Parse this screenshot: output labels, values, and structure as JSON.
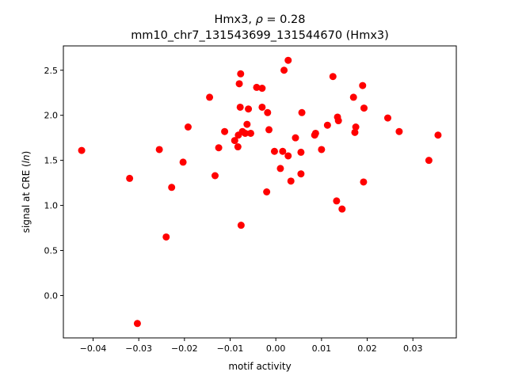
{
  "chart_data": {
    "type": "scatter",
    "title_line1": "Hmx3, ",
    "title_rho_symbol": "ρ",
    "title_rho_value": " = 0.28",
    "title_line2": "mm10_chr7_131543699_131544670 (Hmx3)",
    "xlabel": "motif activity",
    "ylabel_prefix": "signal at CRE (",
    "ylabel_italic": "ln",
    "ylabel_suffix": ")",
    "xlim": [
      -0.0465,
      0.0395
    ],
    "ylim": [
      -0.47,
      2.77
    ],
    "xticks": [
      -0.04,
      -0.03,
      -0.02,
      -0.01,
      0.0,
      0.01,
      0.02,
      0.03
    ],
    "xtick_labels": [
      "−0.04",
      "−0.03",
      "−0.02",
      "−0.01",
      "0.00",
      "0.01",
      "0.02",
      "0.03"
    ],
    "yticks": [
      0.0,
      0.5,
      1.0,
      1.5,
      2.0,
      2.5
    ],
    "ytick_labels": [
      "0.0",
      "0.5",
      "1.0",
      "1.5",
      "2.0",
      "2.5"
    ],
    "grid": false,
    "marker_color": "#ff0000",
    "points": [
      {
        "x": -0.0425,
        "y": 1.61
      },
      {
        "x": -0.032,
        "y": 1.3
      },
      {
        "x": -0.0303,
        "y": -0.31
      },
      {
        "x": -0.0255,
        "y": 1.62
      },
      {
        "x": -0.024,
        "y": 0.65
      },
      {
        "x": -0.0228,
        "y": 1.2
      },
      {
        "x": -0.0203,
        "y": 1.48
      },
      {
        "x": -0.0192,
        "y": 1.87
      },
      {
        "x": -0.0145,
        "y": 2.2
      },
      {
        "x": -0.0133,
        "y": 1.33
      },
      {
        "x": -0.0125,
        "y": 1.64
      },
      {
        "x": -0.0112,
        "y": 1.82
      },
      {
        "x": -0.009,
        "y": 1.72
      },
      {
        "x": -0.0083,
        "y": 1.65
      },
      {
        "x": -0.0082,
        "y": 1.78
      },
      {
        "x": -0.008,
        "y": 2.35
      },
      {
        "x": -0.0078,
        "y": 2.09
      },
      {
        "x": -0.0077,
        "y": 2.46
      },
      {
        "x": -0.0076,
        "y": 0.78
      },
      {
        "x": -0.0073,
        "y": 1.82
      },
      {
        "x": -0.0063,
        "y": 1.9
      },
      {
        "x": -0.0067,
        "y": 1.8
      },
      {
        "x": -0.006,
        "y": 2.07
      },
      {
        "x": -0.0055,
        "y": 1.8
      },
      {
        "x": -0.0042,
        "y": 2.31
      },
      {
        "x": -0.003,
        "y": 2.3
      },
      {
        "x": -0.003,
        "y": 2.09
      },
      {
        "x": -0.002,
        "y": 1.15
      },
      {
        "x": -0.0018,
        "y": 2.03
      },
      {
        "x": -0.0015,
        "y": 1.84
      },
      {
        "x": -0.0003,
        "y": 1.6
      },
      {
        "x": 0.001,
        "y": 1.41
      },
      {
        "x": 0.0015,
        "y": 1.6
      },
      {
        "x": 0.0018,
        "y": 2.5
      },
      {
        "x": 0.0027,
        "y": 2.61
      },
      {
        "x": 0.0027,
        "y": 1.55
      },
      {
        "x": 0.0033,
        "y": 1.27
      },
      {
        "x": 0.0043,
        "y": 1.75
      },
      {
        "x": 0.0055,
        "y": 1.59
      },
      {
        "x": 0.0055,
        "y": 1.35
      },
      {
        "x": 0.0057,
        "y": 2.03
      },
      {
        "x": 0.0085,
        "y": 1.78
      },
      {
        "x": 0.0087,
        "y": 1.8
      },
      {
        "x": 0.01,
        "y": 1.62
      },
      {
        "x": 0.0113,
        "y": 1.89
      },
      {
        "x": 0.0125,
        "y": 2.43
      },
      {
        "x": 0.0133,
        "y": 1.05
      },
      {
        "x": 0.0135,
        "y": 1.98
      },
      {
        "x": 0.0137,
        "y": 1.94
      },
      {
        "x": 0.0145,
        "y": 0.96
      },
      {
        "x": 0.017,
        "y": 2.2
      },
      {
        "x": 0.0173,
        "y": 1.81
      },
      {
        "x": 0.0175,
        "y": 1.87
      },
      {
        "x": 0.019,
        "y": 2.33
      },
      {
        "x": 0.0192,
        "y": 1.26
      },
      {
        "x": 0.0193,
        "y": 2.08
      },
      {
        "x": 0.0245,
        "y": 1.97
      },
      {
        "x": 0.027,
        "y": 1.82
      },
      {
        "x": 0.0335,
        "y": 1.5
      },
      {
        "x": 0.0355,
        "y": 1.78
      }
    ]
  }
}
